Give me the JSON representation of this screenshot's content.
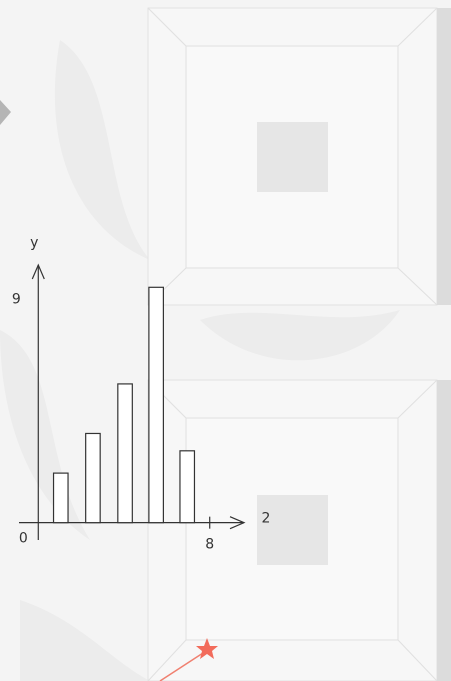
{
  "chart_data": {
    "type": "bar",
    "x_label": "2",
    "y_label": "y",
    "x": [
      1.05,
      2.55,
      4.05,
      5.5,
      6.95
    ],
    "values": [
      2,
      3.6,
      5.6,
      9.5,
      2.9
    ],
    "xlim": [
      -0.9,
      9.6
    ],
    "ylim": [
      -0.7,
      10.4
    ],
    "xticks": [
      0,
      8
    ],
    "yticks": [
      9
    ],
    "color": "#ffffff",
    "grid": false
  }
}
